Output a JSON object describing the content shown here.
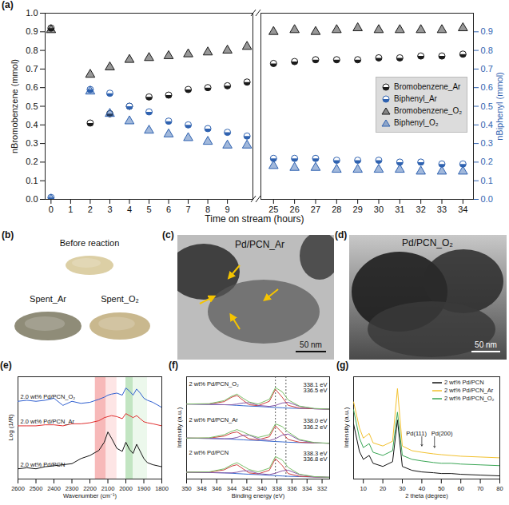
{
  "chart_data": [
    {
      "type": "scatter",
      "label": "(a)",
      "xlabel": "Time on stream (hours)",
      "ylabel": "nBromobenzene (mmol)",
      "y2label": "nBiphenyl (mmol)",
      "x": [
        0,
        2,
        3,
        4,
        5,
        6,
        7,
        8,
        9,
        10,
        25,
        26,
        27,
        28,
        29,
        30,
        31,
        32,
        33,
        34
      ],
      "xlim": [
        -0.3,
        34.5
      ],
      "x_break": [
        10.3,
        24.4
      ],
      "xticks": [
        0,
        1,
        2,
        3,
        4,
        5,
        6,
        7,
        8,
        9,
        25,
        26,
        27,
        28,
        29,
        30,
        31,
        32,
        33,
        34
      ],
      "ylim": [
        0,
        1.0
      ],
      "yticks": [
        {
          "value": 0,
          "label": "0.0"
        },
        0.1,
        0.2,
        0.3,
        0.4,
        0.5,
        0.6,
        0.7,
        0.8,
        0.9,
        {
          "value": 1,
          "label": "1.0"
        }
      ],
      "y2lim": [
        0,
        1.0
      ],
      "y2ticks": [
        {
          "value": 0,
          "label": "0.0"
        },
        0.1,
        0.2,
        0.3,
        0.4,
        0.5,
        0.6,
        0.7,
        0.8,
        0.9
      ],
      "legend": "right",
      "series": [
        {
          "name": "Bromobenzene_Ar",
          "color": "#1a1a1a",
          "marker": "half_circle",
          "values": [
            0.92,
            0.41,
            0.46,
            0.5,
            0.55,
            0.56,
            0.59,
            0.6,
            0.61,
            0.63,
            0.73,
            0.74,
            0.75,
            0.75,
            0.75,
            0.76,
            0.76,
            0.77,
            0.77,
            0.78
          ]
        },
        {
          "name": "Biphenyl_Ar",
          "color": "#2f62b0",
          "marker": "half_circle",
          "axis": "y2",
          "values": [
            0.01,
            0.59,
            0.57,
            0.5,
            0.47,
            0.42,
            0.4,
            0.38,
            0.36,
            0.34,
            0.22,
            0.22,
            0.22,
            0.21,
            0.21,
            0.21,
            0.2,
            0.2,
            0.19,
            0.19
          ]
        },
        {
          "name": "Bromobenzene_O₂",
          "color": "#1a1a1a",
          "marker": "triangle",
          "values": [
            0.91,
            0.67,
            0.71,
            0.75,
            0.76,
            0.77,
            0.78,
            0.79,
            0.8,
            0.82,
            0.9,
            0.91,
            0.9,
            0.91,
            0.92,
            0.91,
            0.91,
            0.91,
            0.91,
            0.92
          ]
        },
        {
          "name": "Biphenyl_O₂",
          "color": "#2f62b0",
          "marker": "triangle",
          "axis": "y2",
          "values": [
            0.0,
            0.58,
            0.46,
            0.42,
            0.37,
            0.35,
            0.33,
            0.31,
            0.29,
            0.29,
            0.18,
            0.17,
            0.17,
            0.16,
            0.16,
            0.16,
            0.16,
            0.15,
            0.15,
            0.15
          ]
        }
      ]
    },
    {
      "type": "line",
      "label": "(e)",
      "xlabel": "Wavenumber (cm⁻¹)",
      "ylabel": "Log (1/R)",
      "x": [
        2600,
        2550,
        2500,
        2450,
        2400,
        2350,
        2300,
        2250,
        2200,
        2150,
        2120,
        2100,
        2080,
        2050,
        2020,
        2000,
        1980,
        1960,
        1940,
        1920,
        1900,
        1880,
        1850,
        1800
      ],
      "xlim": [
        2600,
        1800
      ],
      "xticks": [
        2600,
        2500,
        2400,
        2300,
        2200,
        2100,
        2000,
        1900,
        1800
      ],
      "ylim": [
        0,
        10
      ],
      "tick_labels": "x",
      "bands": [
        {
          "x": [
            2170,
            2110
          ],
          "color": "#f08080"
        },
        {
          "x": [
            2110,
            2050
          ],
          "color": "#fbd0d0"
        },
        {
          "x": [
            2000,
            1960
          ],
          "color": "#90d090"
        },
        {
          "x": [
            1960,
            1880
          ],
          "color": "#dcf2dc"
        }
      ],
      "series": [
        {
          "name": "2.0 wt% Pd/PCN_O₂",
          "color": "#2f5fd0",
          "values": [
            7.6,
            7.7,
            7.6,
            7.7,
            7.9,
            7.2,
            7.6,
            7.4,
            7.5,
            7.8,
            8.0,
            8.2,
            8.3,
            8.4,
            8.2,
            8.9,
            8.6,
            8.2,
            8.8,
            8.4,
            7.9,
            7.7,
            7.5,
            7.0
          ]
        },
        {
          "name": "2.0 wt% Pd/PCN_Ar",
          "color": "#e03030",
          "values": [
            5.2,
            5.2,
            5.2,
            5.3,
            5.3,
            5.2,
            5.4,
            5.4,
            5.5,
            5.7,
            6.0,
            6.1,
            6.2,
            6.1,
            5.9,
            6.4,
            6.2,
            6.0,
            6.2,
            5.9,
            5.6,
            5.5,
            5.4,
            5.2
          ]
        },
        {
          "name": "2.0 wt% Pd/PCN",
          "color": "#111111",
          "values": [
            1.0,
            1.1,
            1.0,
            1.2,
            1.3,
            1.4,
            1.5,
            2.0,
            2.3,
            2.8,
            3.6,
            4.6,
            4.0,
            3.0,
            2.7,
            3.6,
            2.9,
            2.5,
            3.4,
            2.7,
            2.0,
            1.6,
            1.4,
            1.2
          ]
        }
      ]
    },
    {
      "type": "line",
      "label": "(f)",
      "xlabel": "Binding energy (eV)",
      "ylabel": "Intensity (a.u.)",
      "x": [
        350,
        347,
        345,
        344,
        343.3,
        342.5,
        341.7,
        340.5,
        339,
        338.2,
        337.3,
        336.5,
        335,
        333,
        331
      ],
      "xlim": [
        350,
        331
      ],
      "xticks": [
        350,
        348,
        346,
        344,
        342,
        340,
        338,
        336,
        334,
        332
      ],
      "ylim": [
        0,
        30
      ],
      "tick_labels": "x",
      "reference_lines": [
        338.2,
        336.8
      ],
      "samples": [
        {
          "name": "2 wt% Pd/PCN_O₂",
          "peak_labels": [
            "338.1 eV",
            "336.5 eV"
          ],
          "series": [
            {
              "color": "#3a6ad0",
              "values": [
                22.0,
                21.9,
                21.8,
                21.7,
                21.6,
                21.5,
                21.4,
                21.3,
                21.1,
                21.0,
                20.9,
                20.8,
                20.7,
                20.6,
                20.5
              ]
            },
            {
              "color": "#d04040",
              "values": [
                22.0,
                22.0,
                22.7,
                24.0,
                24.5,
                23.1,
                21.8,
                21.5,
                22.8,
                26.3,
                24.0,
                21.6,
                20.8,
                20.6,
                20.5
              ]
            },
            {
              "color": "#8a5aa8",
              "values": [
                22.0,
                21.9,
                21.8,
                21.8,
                22.0,
                22.3,
                22.4,
                21.6,
                21.3,
                21.6,
                22.3,
                22.5,
                21.3,
                20.6,
                20.5
              ]
            },
            {
              "color": "#7cc06a",
              "values": [
                22.0,
                22.1,
                23.0,
                24.3,
                24.9,
                23.7,
                22.6,
                22.0,
                23.4,
                26.8,
                25.6,
                23.2,
                21.4,
                20.7,
                20.5
              ]
            }
          ]
        },
        {
          "name": "2 wt% Pd/PCN_Ar",
          "peak_labels": [
            "338.0 eV",
            "336.2 eV"
          ],
          "series": [
            {
              "color": "#3a6ad0",
              "values": [
                12.0,
                11.9,
                11.8,
                11.7,
                11.6,
                11.5,
                11.4,
                11.3,
                11.1,
                11.0,
                10.9,
                10.8,
                10.7,
                10.6,
                10.5
              ]
            },
            {
              "color": "#d04040",
              "values": [
                12.0,
                12.0,
                12.6,
                13.5,
                13.8,
                12.8,
                11.8,
                11.5,
                12.4,
                15.6,
                13.6,
                11.6,
                10.8,
                10.6,
                10.5
              ]
            },
            {
              "color": "#8a5aa8",
              "values": [
                12.0,
                11.9,
                11.8,
                11.9,
                12.2,
                12.8,
                12.9,
                11.8,
                11.3,
                11.8,
                12.9,
                13.2,
                11.4,
                10.6,
                10.5
              ]
            },
            {
              "color": "#7cc06a",
              "values": [
                12.0,
                12.1,
                13.0,
                14.0,
                14.5,
                13.8,
                13.0,
                12.2,
                13.0,
                16.2,
                15.4,
                13.8,
                11.6,
                10.7,
                10.5
              ]
            }
          ]
        },
        {
          "name": "2 wt% Pd/PCN",
          "peak_labels": [
            "338.3 eV",
            "336.8 eV"
          ],
          "series": [
            {
              "color": "#3a6ad0",
              "values": [
                2.0,
                1.9,
                1.8,
                1.7,
                1.6,
                1.5,
                1.4,
                1.3,
                1.1,
                1.0,
                0.9,
                0.8,
                0.7,
                0.6,
                0.5
              ]
            },
            {
              "color": "#d04040",
              "values": [
                2.0,
                2.0,
                2.7,
                3.8,
                4.2,
                3.0,
                1.8,
                1.5,
                2.6,
                6.0,
                4.0,
                1.6,
                0.8,
                0.6,
                0.5
              ]
            },
            {
              "color": "#8a5aa8",
              "values": [
                2.0,
                1.9,
                1.8,
                1.8,
                2.0,
                2.4,
                2.4,
                1.6,
                1.3,
                1.7,
                2.4,
                2.6,
                1.3,
                0.6,
                0.5
              ]
            },
            {
              "color": "#7cc06a",
              "values": [
                2.0,
                2.1,
                3.0,
                4.2,
                4.8,
                3.8,
                2.8,
                2.1,
                3.2,
                6.6,
                5.6,
                3.4,
                1.4,
                0.7,
                0.5
              ]
            }
          ]
        }
      ]
    },
    {
      "type": "line",
      "label": "(g)",
      "xlabel": "2 theta (degree)",
      "ylabel": "Intensity (a.u.)",
      "x": [
        5,
        8,
        10,
        13,
        15,
        20,
        25,
        27.5,
        30,
        35,
        40,
        46,
        50,
        55,
        60,
        70,
        80
      ],
      "xlim": [
        5,
        80
      ],
      "xticks": [
        10,
        20,
        30,
        40,
        50,
        60,
        70,
        80
      ],
      "ylim": [
        0,
        13
      ],
      "tick_labels": "x",
      "legend": "top-right",
      "series": [
        {
          "name": "2 wt% Pd/PCN",
          "color": "#111111",
          "values": [
            7.0,
            3.5,
            2.5,
            3.0,
            2.0,
            1.6,
            2.2,
            7.5,
            1.6,
            1.1,
            0.9,
            0.8,
            0.7,
            0.7,
            0.6,
            0.5,
            0.4
          ]
        },
        {
          "name": "2 wt% Pd/PCN_Ar",
          "color": "#f2c12e",
          "values": [
            9.8,
            6.5,
            5.2,
            5.8,
            4.6,
            4.2,
            4.8,
            11.5,
            4.2,
            3.6,
            3.4,
            3.2,
            3.1,
            3.0,
            2.9,
            2.8,
            2.7
          ]
        },
        {
          "name": "2 wt% Pd/PCN_O₂",
          "color": "#3aa655",
          "values": [
            8.8,
            5.2,
            4.0,
            4.5,
            3.4,
            3.0,
            3.6,
            8.5,
            3.0,
            2.5,
            2.3,
            2.1,
            2.0,
            2.0,
            1.9,
            1.8,
            1.7
          ]
        }
      ],
      "annotations": [
        {
          "text": "Pd(111)",
          "x": 40,
          "y": 5.4,
          "tip": 4.2
        },
        {
          "text": "Pd(200)",
          "x": 46.5,
          "y": 5.4,
          "tip": 4.0
        }
      ]
    }
  ],
  "images": [
    {
      "label": "(b)",
      "texts": [
        "Before reaction",
        "Spent_Ar",
        "Spent_O₂"
      ]
    },
    {
      "label": "(c)",
      "title": "Pd/PCN_Ar",
      "scale_bar": "50 nm"
    },
    {
      "label": "(d)",
      "title": "Pd/PCN_O₂",
      "scale_bar": "50 nm"
    }
  ]
}
